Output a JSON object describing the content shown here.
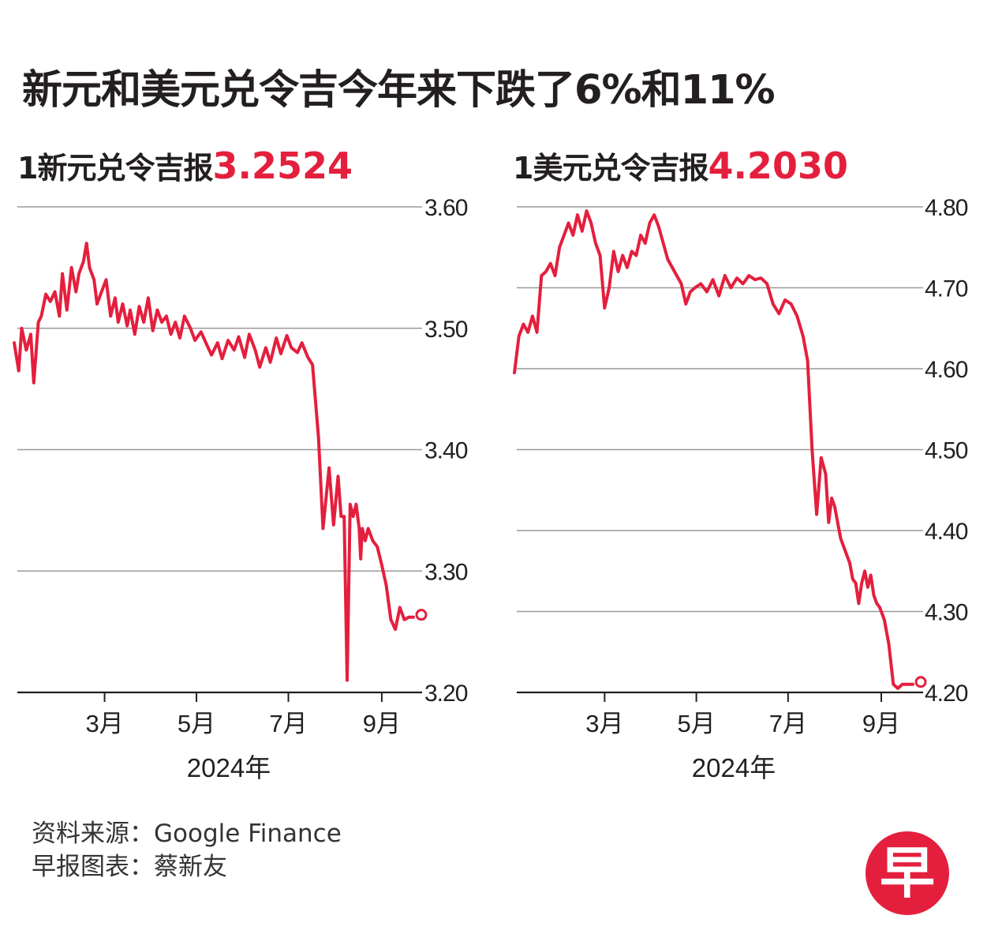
{
  "title": "新元和美元兑令吉今年来下跌了6%和11%",
  "source_line": "资料来源：Google Finance",
  "credit_line": "早报图表：蔡新友",
  "logo_text": "早",
  "colors": {
    "line": "#e41f3d",
    "grid": "#9a9a9a",
    "text": "#231f20"
  },
  "chart_data": [
    {
      "type": "line",
      "subtitle_prefix": "1新元兑令吉报",
      "latest_value": "3.2524",
      "xlabel": "2024年",
      "ylim": [
        3.2,
        3.6
      ],
      "yticks": [
        "3.20",
        "3.30",
        "3.40",
        "3.50",
        "3.60"
      ],
      "xticks": [
        {
          "label": "3月",
          "date": "2024-03-01"
        },
        {
          "label": "5月",
          "date": "2024-05-01"
        },
        {
          "label": "7月",
          "date": "2024-07-01"
        },
        {
          "label": "9月",
          "date": "2024-09-01"
        }
      ],
      "xlim": [
        "2024-01-01",
        "2024-10-03"
      ],
      "grid": true,
      "series": [
        {
          "x": [
            "2024-01-01",
            "2024-01-04",
            "2024-01-06",
            "2024-01-09",
            "2024-01-12",
            "2024-01-14",
            "2024-01-17",
            "2024-01-19",
            "2024-01-22",
            "2024-01-25",
            "2024-01-28",
            "2024-01-31",
            "2024-02-02",
            "2024-02-05",
            "2024-02-08",
            "2024-02-11",
            "2024-02-13",
            "2024-02-16",
            "2024-02-18",
            "2024-02-20",
            "2024-02-23",
            "2024-02-25",
            "2024-02-28",
            "2024-03-02",
            "2024-03-05",
            "2024-03-08",
            "2024-03-10",
            "2024-03-13",
            "2024-03-16",
            "2024-03-18",
            "2024-03-21",
            "2024-03-24",
            "2024-03-27",
            "2024-03-30",
            "2024-04-02",
            "2024-04-05",
            "2024-04-08",
            "2024-04-11",
            "2024-04-14",
            "2024-04-17",
            "2024-04-20",
            "2024-04-23",
            "2024-04-27",
            "2024-04-30",
            "2024-05-04",
            "2024-05-08",
            "2024-05-11",
            "2024-05-15",
            "2024-05-18",
            "2024-05-22",
            "2024-05-26",
            "2024-05-29",
            "2024-06-02",
            "2024-06-05",
            "2024-06-09",
            "2024-06-12",
            "2024-06-16",
            "2024-06-19",
            "2024-06-23",
            "2024-06-26",
            "2024-06-30",
            "2024-07-03",
            "2024-07-07",
            "2024-07-10",
            "2024-07-14",
            "2024-07-17",
            "2024-07-21",
            "2024-07-24",
            "2024-07-28",
            "2024-07-31",
            "2024-08-03",
            "2024-08-05",
            "2024-08-07",
            "2024-08-09",
            "2024-08-11",
            "2024-08-13",
            "2024-08-14",
            "2024-08-15",
            "2024-08-16",
            "2024-08-17",
            "2024-08-18",
            "2024-08-19",
            "2024-08-21",
            "2024-08-23",
            "2024-08-26",
            "2024-08-29",
            "2024-09-01",
            "2024-09-04",
            "2024-09-07",
            "2024-09-10",
            "2024-09-13",
            "2024-09-16",
            "2024-09-19",
            "2024-09-22"
          ],
          "y": [
            3.488,
            3.465,
            3.5,
            3.482,
            3.495,
            3.455,
            3.505,
            3.51,
            3.528,
            3.522,
            3.53,
            3.51,
            3.545,
            3.515,
            3.55,
            3.53,
            3.545,
            3.555,
            3.57,
            3.55,
            3.54,
            3.52,
            3.53,
            3.54,
            3.51,
            3.525,
            3.505,
            3.52,
            3.502,
            3.515,
            3.495,
            3.518,
            3.505,
            3.525,
            3.498,
            3.515,
            3.505,
            3.51,
            3.495,
            3.505,
            3.492,
            3.51,
            3.5,
            3.49,
            3.497,
            3.486,
            3.478,
            3.488,
            3.475,
            3.49,
            3.482,
            3.493,
            3.476,
            3.495,
            3.482,
            3.468,
            3.484,
            3.472,
            3.492,
            3.479,
            3.494,
            3.484,
            3.48,
            3.488,
            3.476,
            3.47,
            3.41,
            3.335,
            3.385,
            3.338,
            3.378,
            3.345,
            3.345,
            3.21,
            3.355,
            3.345,
            3.35,
            3.355,
            3.345,
            3.335,
            3.31,
            3.335,
            3.325,
            3.335,
            3.325,
            3.32,
            3.305,
            3.288,
            3.26,
            3.252,
            3.27,
            3.26,
            3.262,
            3.262
          ]
        }
      ]
    },
    {
      "type": "line",
      "subtitle_prefix": "1美元兑令吉报",
      "latest_value": "4.2030",
      "xlabel": "2024年",
      "ylim": [
        4.2,
        4.8
      ],
      "yticks": [
        "4.20",
        "4.30",
        "4.40",
        "4.50",
        "4.60",
        "4.70",
        "4.80"
      ],
      "xticks": [
        {
          "label": "3月",
          "date": "2024-03-01"
        },
        {
          "label": "5月",
          "date": "2024-05-01"
        },
        {
          "label": "7月",
          "date": "2024-07-01"
        },
        {
          "label": "9月",
          "date": "2024-09-01"
        }
      ],
      "xlim": [
        "2024-01-01",
        "2024-10-03"
      ],
      "grid": true,
      "series": [
        {
          "x": [
            "2024-01-01",
            "2024-01-04",
            "2024-01-07",
            "2024-01-10",
            "2024-01-13",
            "2024-01-16",
            "2024-01-19",
            "2024-01-22",
            "2024-01-25",
            "2024-01-28",
            "2024-01-31",
            "2024-02-03",
            "2024-02-06",
            "2024-02-09",
            "2024-02-12",
            "2024-02-15",
            "2024-02-18",
            "2024-02-21",
            "2024-02-24",
            "2024-02-27",
            "2024-03-01",
            "2024-03-04",
            "2024-03-07",
            "2024-03-10",
            "2024-03-13",
            "2024-03-16",
            "2024-03-19",
            "2024-03-22",
            "2024-03-25",
            "2024-03-28",
            "2024-03-31",
            "2024-04-03",
            "2024-04-06",
            "2024-04-09",
            "2024-04-12",
            "2024-04-15",
            "2024-04-18",
            "2024-04-21",
            "2024-04-24",
            "2024-04-27",
            "2024-04-30",
            "2024-05-04",
            "2024-05-08",
            "2024-05-12",
            "2024-05-16",
            "2024-05-20",
            "2024-05-24",
            "2024-05-28",
            "2024-06-01",
            "2024-06-05",
            "2024-06-09",
            "2024-06-13",
            "2024-06-17",
            "2024-06-21",
            "2024-06-25",
            "2024-06-29",
            "2024-07-03",
            "2024-07-07",
            "2024-07-11",
            "2024-07-14",
            "2024-07-17",
            "2024-07-20",
            "2024-07-23",
            "2024-07-26",
            "2024-07-28",
            "2024-07-30",
            "2024-08-01",
            "2024-08-03",
            "2024-08-05",
            "2024-08-07",
            "2024-08-09",
            "2024-08-11",
            "2024-08-13",
            "2024-08-15",
            "2024-08-17",
            "2024-08-19",
            "2024-08-21",
            "2024-08-23",
            "2024-08-25",
            "2024-08-27",
            "2024-08-29",
            "2024-08-31",
            "2024-09-03",
            "2024-09-06",
            "2024-09-09",
            "2024-09-12",
            "2024-09-15",
            "2024-09-18",
            "2024-09-20",
            "2024-09-22"
          ],
          "y": [
            4.595,
            4.64,
            4.655,
            4.645,
            4.665,
            4.645,
            4.715,
            4.72,
            4.73,
            4.715,
            4.75,
            4.765,
            4.78,
            4.765,
            4.79,
            4.77,
            4.795,
            4.78,
            4.755,
            4.74,
            4.675,
            4.7,
            4.745,
            4.72,
            4.74,
            4.725,
            4.745,
            4.74,
            4.765,
            4.755,
            4.78,
            4.79,
            4.775,
            4.755,
            4.735,
            4.725,
            4.715,
            4.705,
            4.68,
            4.695,
            4.7,
            4.705,
            4.695,
            4.71,
            4.69,
            4.715,
            4.7,
            4.712,
            4.705,
            4.715,
            4.71,
            4.712,
            4.705,
            4.68,
            4.668,
            4.685,
            4.68,
            4.665,
            4.64,
            4.61,
            4.5,
            4.42,
            4.49,
            4.47,
            4.41,
            4.44,
            4.43,
            4.41,
            4.39,
            4.38,
            4.37,
            4.36,
            4.34,
            4.335,
            4.31,
            4.335,
            4.35,
            4.33,
            4.345,
            4.32,
            4.31,
            4.305,
            4.29,
            4.26,
            4.21,
            4.205,
            4.21,
            4.21,
            4.21,
            4.21
          ]
        }
      ]
    }
  ]
}
